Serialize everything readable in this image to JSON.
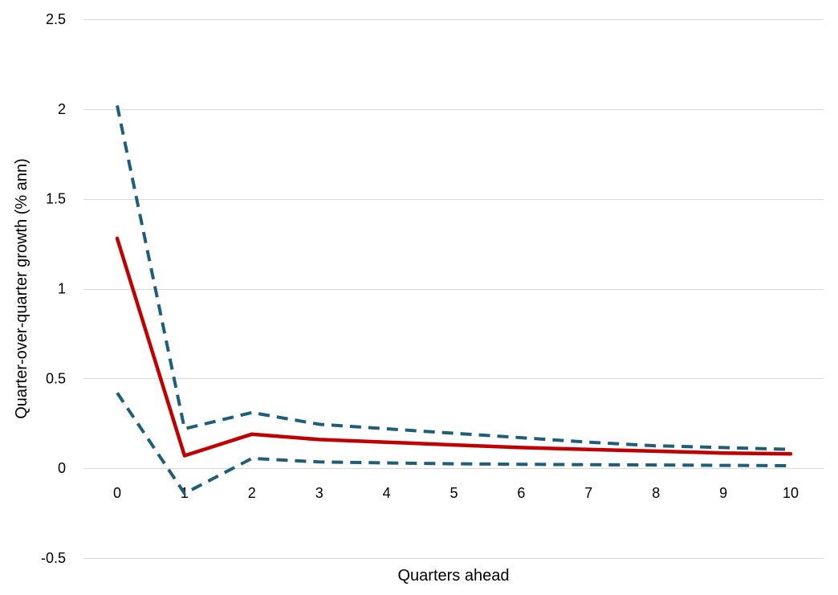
{
  "chart_data": {
    "type": "line",
    "title": "",
    "xlabel": "Quarters ahead",
    "ylabel": "Quarter-over-quarter growth (% ann)",
    "x": [
      0,
      1,
      2,
      3,
      4,
      5,
      6,
      7,
      8,
      9,
      10
    ],
    "x_tick_labels": [
      "0",
      "1",
      "2",
      "3",
      "4",
      "5",
      "6",
      "7",
      "8",
      "9",
      "10"
    ],
    "ylim": [
      -0.5,
      2.5
    ],
    "y_ticks": [
      -0.5,
      0,
      0.5,
      1,
      1.5,
      2,
      2.5
    ],
    "y_tick_labels": [
      "-0.5",
      "0",
      "0.5",
      "1",
      "1.5",
      "2",
      "2.5"
    ],
    "grid": true,
    "legend": "none",
    "series": [
      {
        "style": "solid",
        "color": "#c00000",
        "values": [
          1.28,
          0.07,
          0.19,
          0.16,
          0.145,
          0.13,
          0.115,
          0.105,
          0.095,
          0.085,
          0.08
        ]
      },
      {
        "style": "dashed",
        "color": "#1f5e7a",
        "values": [
          2.02,
          0.22,
          0.31,
          0.245,
          0.22,
          0.195,
          0.17,
          0.145,
          0.125,
          0.115,
          0.105
        ]
      },
      {
        "style": "dashed",
        "color": "#1f5e7a",
        "values": [
          0.42,
          -0.14,
          0.055,
          0.035,
          0.03,
          0.025,
          0.022,
          0.02,
          0.018,
          0.016,
          0.014
        ]
      }
    ]
  }
}
